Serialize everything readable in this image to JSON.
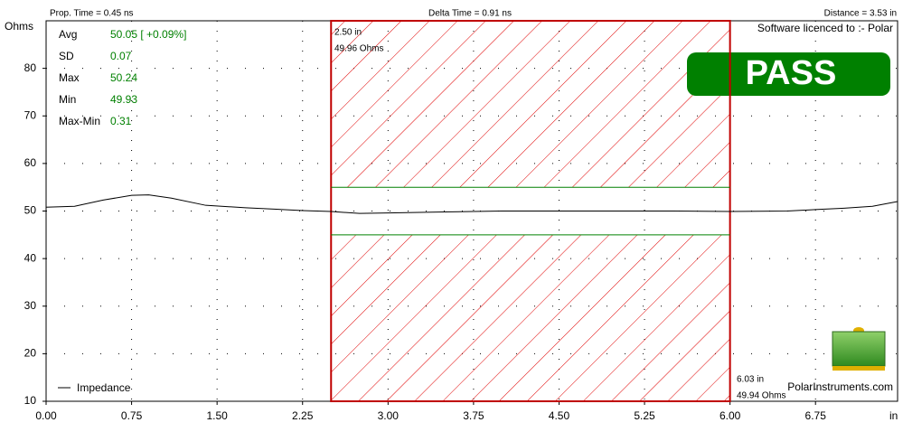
{
  "chart_data": {
    "type": "line",
    "header": {
      "left": "Prop. Time = 0.45 ns",
      "center": "Delta Time = 0.91 ns",
      "right": "Distance = 3.53 in"
    },
    "ylabel": "Ohms",
    "xlabel": "in",
    "license": "Software licenced to :- Polar",
    "status": "PASS",
    "website": "PolarInstruments.com",
    "stats": [
      {
        "label": "Avg",
        "value": "50.05 [ +0.09%]"
      },
      {
        "label": "SD",
        "value": "0.07"
      },
      {
        "label": "Max",
        "value": "50.24"
      },
      {
        "label": "Min",
        "value": "49.93"
      },
      {
        "label": "Max-Min",
        "value": "0.31"
      }
    ],
    "cursors": [
      {
        "position": "2.50 in",
        "reading": "49.96 Ohms"
      },
      {
        "position": "6.03 in",
        "reading": "49.94 Ohms"
      }
    ],
    "limits": {
      "start": 2.5,
      "end": 6.0,
      "lower": 45,
      "upper": 55
    },
    "x": [
      0,
      0.25,
      0.5,
      0.75,
      0.9,
      1.1,
      1.4,
      1.75,
      2.0,
      2.25,
      2.5,
      2.75,
      3.0,
      3.5,
      4.0,
      4.5,
      5.0,
      5.5,
      6.0,
      6.5,
      6.75,
      7.0,
      7.25,
      7.47
    ],
    "series": [
      {
        "name": "Impedance",
        "color": "#000000",
        "values": [
          50.8,
          51.0,
          52.3,
          53.3,
          53.4,
          52.7,
          51.2,
          50.7,
          50.4,
          50.1,
          49.9,
          49.5,
          49.6,
          49.8,
          50.0,
          50.0,
          50.0,
          50.0,
          49.9,
          50.0,
          50.3,
          50.6,
          51.0,
          52.0
        ]
      }
    ],
    "xlim": [
      0,
      7.47
    ],
    "ylim": [
      10,
      90
    ],
    "xticks": [
      {
        "value": 0,
        "label": "0.00"
      },
      {
        "value": 0.75,
        "label": "0.75"
      },
      {
        "value": 1.5,
        "label": "1.50"
      },
      {
        "value": 2.25,
        "label": "2.25"
      },
      {
        "value": 3,
        "label": "3.00"
      },
      {
        "value": 3.75,
        "label": "3.75"
      },
      {
        "value": 4.5,
        "label": "4.50"
      },
      {
        "value": 5.25,
        "label": "5.25"
      },
      {
        "value": 6,
        "label": "6.00"
      },
      {
        "value": 6.75,
        "label": "6.75"
      }
    ],
    "yticks": [
      10,
      20,
      30,
      40,
      50,
      60,
      70,
      80
    ],
    "grid": true
  }
}
